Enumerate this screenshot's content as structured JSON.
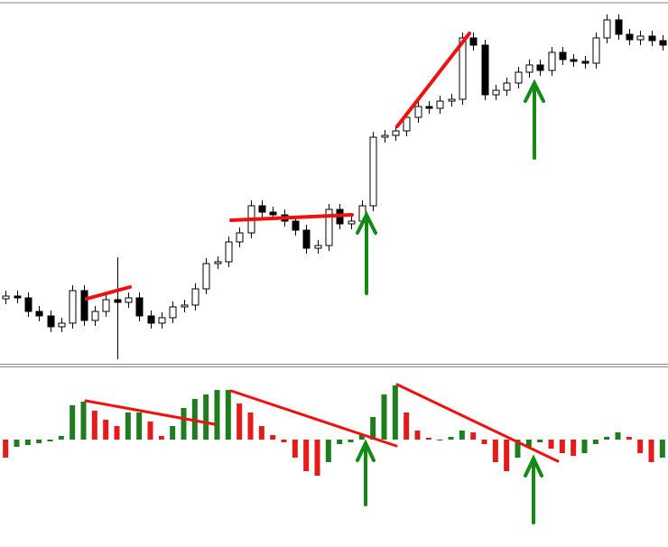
{
  "chart_data": [
    {
      "type": "candlestick",
      "open": [
        72,
        75,
        73,
        58,
        53,
        41,
        45,
        81,
        48,
        58,
        71,
        68,
        73,
        53,
        45,
        51,
        63,
        65,
        83,
        111,
        113,
        135,
        145,
        175,
        168,
        165,
        158,
        148,
        128,
        131,
        171,
        155,
        158,
        175,
        251,
        253,
        258,
        273,
        285,
        283,
        291,
        293,
        361,
        353,
        298,
        303,
        311,
        323,
        331,
        325,
        345,
        337,
        335,
        333,
        361,
        381,
        365,
        359,
        363,
        358
      ],
      "high": [
        81,
        81,
        79,
        64,
        59,
        51,
        87,
        87,
        64,
        77,
        118,
        79,
        79,
        59,
        57,
        69,
        71,
        89,
        117,
        119,
        141,
        151,
        181,
        181,
        174,
        171,
        164,
        154,
        137,
        177,
        177,
        164,
        181,
        257,
        259,
        264,
        279,
        291,
        291,
        297,
        299,
        367,
        367,
        359,
        309,
        317,
        329,
        337,
        337,
        351,
        351,
        343,
        341,
        367,
        387,
        387,
        371,
        369,
        369,
        364
      ],
      "low": [
        66,
        67,
        52,
        47,
        35,
        35,
        39,
        42,
        42,
        52,
        5,
        62,
        47,
        39,
        39,
        45,
        57,
        59,
        77,
        105,
        107,
        129,
        139,
        162,
        159,
        152,
        142,
        122,
        122,
        125,
        149,
        149,
        152,
        169,
        245,
        247,
        252,
        267,
        277,
        277,
        285,
        287,
        347,
        292,
        292,
        297,
        305,
        317,
        319,
        319,
        331,
        329,
        327,
        327,
        355,
        359,
        353,
        353,
        352,
        347
      ],
      "close": [
        75,
        73,
        58,
        53,
        41,
        45,
        81,
        48,
        58,
        71,
        68,
        73,
        53,
        45,
        51,
        63,
        65,
        83,
        111,
        113,
        135,
        145,
        175,
        168,
        165,
        158,
        148,
        128,
        131,
        171,
        155,
        158,
        175,
        251,
        253,
        258,
        273,
        285,
        283,
        291,
        293,
        361,
        353,
        298,
        303,
        311,
        323,
        331,
        325,
        345,
        337,
        335,
        333,
        361,
        381,
        365,
        359,
        363,
        358,
        353
      ],
      "ylim": [
        0,
        400
      ],
      "up_color": "#ffffff",
      "down_color": "#000000",
      "wick_color": "#000000"
    },
    {
      "type": "bar",
      "values": [
        -20,
        -8,
        -6,
        -4,
        -2,
        4,
        38,
        42,
        32,
        22,
        15,
        30,
        30,
        20,
        4,
        15,
        35,
        45,
        50,
        55,
        55,
        40,
        30,
        15,
        5,
        -3,
        -20,
        -35,
        -40,
        -25,
        -5,
        -3,
        5,
        25,
        50,
        60,
        30,
        10,
        2,
        -1,
        3,
        10,
        8,
        -5,
        -25,
        -35,
        -20,
        -8,
        -3,
        -10,
        -15,
        -18,
        -15,
        -5,
        3,
        8,
        3,
        -15,
        -25,
        -20
      ],
      "ylim": [
        -119,
        81
      ],
      "up_color": "#1e7d1e",
      "down_color": "#e51b1b"
    }
  ]
}
